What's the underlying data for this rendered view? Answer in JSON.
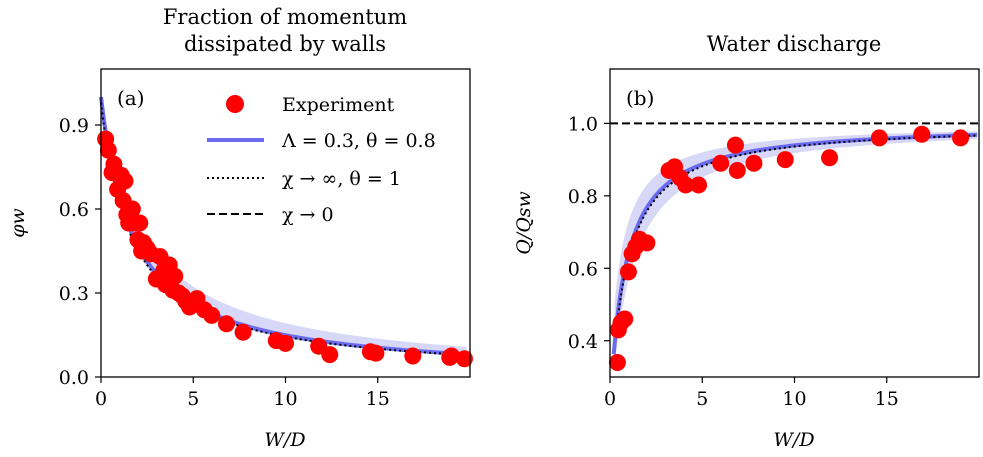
{
  "chart_data": [
    {
      "id": "a",
      "type": "scatter",
      "panel_label": "(a)",
      "title": [
        "Fraction of momentum",
        "dissipated by walls"
      ],
      "xlabel": "W/D",
      "ylabel": "φw",
      "xlim": [
        0,
        20
      ],
      "ylim": [
        0,
        1.1
      ],
      "xticks": [
        0,
        5,
        10,
        15
      ],
      "yticks": [
        0.0,
        0.3,
        0.6,
        0.9
      ],
      "xtick_labels": [
        "0",
        "5",
        "10",
        "15"
      ],
      "ytick_labels": [
        "0.0",
        "0.3",
        "0.6",
        "0.9"
      ],
      "legend": {
        "position": "top-right",
        "entries": [
          {
            "label": "Experiment",
            "style": "marker",
            "color": "#ff0000"
          },
          {
            "label": "Λ = 0.3, θ = 0.8",
            "style": "solid",
            "color": "#6b6bf0"
          },
          {
            "label": "χ → ∞, θ = 1",
            "style": "dotted",
            "color": "#000000"
          },
          {
            "label": "χ → 0",
            "style": "dashed",
            "color": "#000000"
          }
        ]
      },
      "experiment": {
        "x": [
          0.25,
          0.4,
          0.6,
          0.7,
          0.9,
          1.1,
          1.2,
          1.3,
          1.4,
          1.5,
          1.7,
          1.8,
          2.0,
          2.1,
          2.2,
          2.3,
          2.5,
          2.7,
          3.0,
          3.2,
          3.4,
          3.5,
          3.7,
          3.9,
          4.0,
          4.2,
          4.4,
          4.6,
          4.8,
          5.2,
          5.6,
          6.0,
          6.8,
          7.7,
          9.5,
          10.0,
          11.8,
          12.4,
          14.6,
          14.9,
          16.9,
          18.9,
          19.0,
          19.7
        ],
        "y": [
          0.85,
          0.81,
          0.73,
          0.76,
          0.67,
          0.72,
          0.63,
          0.7,
          0.58,
          0.55,
          0.6,
          0.55,
          0.49,
          0.55,
          0.45,
          0.48,
          0.46,
          0.44,
          0.35,
          0.43,
          0.38,
          0.33,
          0.4,
          0.31,
          0.36,
          0.3,
          0.29,
          0.27,
          0.25,
          0.28,
          0.24,
          0.22,
          0.19,
          0.16,
          0.13,
          0.12,
          0.11,
          0.08,
          0.09,
          0.085,
          0.075,
          0.07,
          0.075,
          0.065
        ]
      },
      "model": {
        "label": "Λ = 0.3, θ = 0.8"
      },
      "limit_inf": {
        "label": "χ → ∞, θ = 1"
      }
    },
    {
      "id": "b",
      "type": "scatter",
      "panel_label": "(b)",
      "title": [
        "Water discharge"
      ],
      "xlabel": "W/D",
      "ylabel": "Q/Qsw",
      "xlim": [
        0,
        20
      ],
      "ylim": [
        0.3,
        1.15
      ],
      "xticks": [
        0,
        5,
        10,
        15
      ],
      "yticks": [
        0.4,
        0.6,
        0.8,
        1.0
      ],
      "xtick_labels": [
        "0",
        "5",
        "10",
        "15"
      ],
      "ytick_labels": [
        "0.4",
        "0.6",
        "0.8",
        "1.0"
      ],
      "experiment": {
        "x": [
          0.4,
          0.45,
          0.6,
          0.8,
          1.0,
          1.2,
          1.4,
          1.6,
          2.0,
          3.2,
          3.5,
          3.8,
          4.1,
          4.8,
          6.0,
          6.8,
          6.9,
          7.8,
          9.5,
          11.9,
          14.6,
          16.9,
          19.0
        ],
        "y": [
          0.34,
          0.43,
          0.45,
          0.46,
          0.59,
          0.64,
          0.66,
          0.68,
          0.67,
          0.87,
          0.88,
          0.85,
          0.83,
          0.83,
          0.89,
          0.94,
          0.87,
          0.89,
          0.9,
          0.905,
          0.96,
          0.97,
          0.96
        ]
      },
      "reference_line": {
        "y": 1.0,
        "style": "dashed"
      }
    }
  ],
  "colors": {
    "experiment": "#ff0000",
    "model": "#6b6bf0",
    "band": "#c9c9f4",
    "lines": "#000000"
  }
}
